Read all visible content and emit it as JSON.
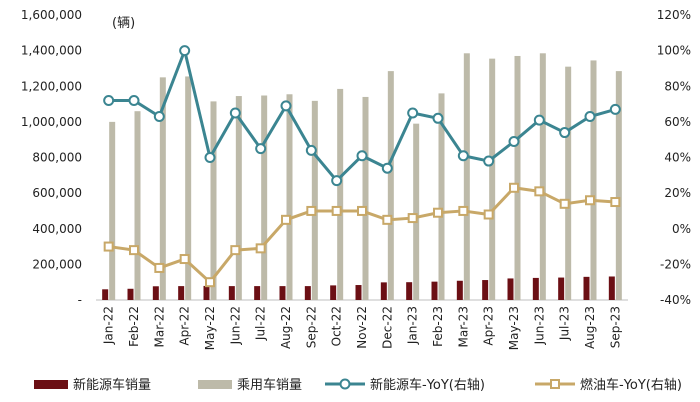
{
  "chart_data": {
    "type": "bar+line",
    "unit_label": "(辆)",
    "categories": [
      "Jan-22",
      "Feb-22",
      "Mar-22",
      "Apr-22",
      "May-22",
      "Jun-22",
      "Jul-22",
      "Aug-22",
      "Sep-22",
      "Oct-22",
      "Nov-22",
      "Dec-22",
      "Jan-23",
      "Feb-23",
      "Mar-23",
      "Apr-23",
      "May-23",
      "Jun-23",
      "Jul-23",
      "Aug-23",
      "Sep-23"
    ],
    "left_axis": {
      "min": 0,
      "max": 1600000,
      "ticks": [
        "-",
        "200,000",
        "400,000",
        "600,000",
        "800,000",
        "1,000,000",
        "1,200,000",
        "1,400,000",
        "1,600,000"
      ]
    },
    "right_axis": {
      "min": -40,
      "max": 120,
      "ticks": [
        "-40%",
        "-20%",
        "0%",
        "20%",
        "40%",
        "60%",
        "80%",
        "100%",
        "120%"
      ]
    },
    "series": [
      {
        "name": "新能源车销量",
        "kind": "bar",
        "axis": "left",
        "color": "#6b0f14",
        "values": [
          60000,
          63000,
          77000,
          78000,
          79000,
          78000,
          78000,
          78000,
          78000,
          82000,
          84000,
          99000,
          100000,
          103000,
          108000,
          112000,
          121000,
          124000,
          126000,
          130000,
          132000
        ]
      },
      {
        "name": "乘用车销量",
        "kind": "bar",
        "axis": "left",
        "color": "#bdbaa9",
        "values": [
          1000000,
          1060000,
          1250000,
          1255000,
          1115000,
          1145000,
          1148000,
          1155000,
          1118000,
          1185000,
          1140000,
          1285000,
          990000,
          1160000,
          1385000,
          1355000,
          1370000,
          1385000,
          1310000,
          1345000,
          1285000
        ]
      },
      {
        "name": "新能源车-YoY(右轴)",
        "kind": "line",
        "axis": "right",
        "color": "#3b8591",
        "marker": "circle",
        "values": [
          72,
          72,
          63,
          100,
          40,
          65,
          45,
          69,
          44,
          27,
          41,
          34,
          65,
          62,
          41,
          38,
          49,
          61,
          54,
          63,
          67
        ]
      },
      {
        "name": "燃油车-YoY(右轴)",
        "kind": "line",
        "axis": "right",
        "color": "#c8a868",
        "marker": "square",
        "values": [
          -10,
          -12,
          -22,
          -17,
          -30,
          -12,
          -11,
          5,
          10,
          10,
          10,
          5,
          6,
          9,
          10,
          8,
          23,
          21,
          14,
          16,
          15
        ]
      }
    ]
  }
}
